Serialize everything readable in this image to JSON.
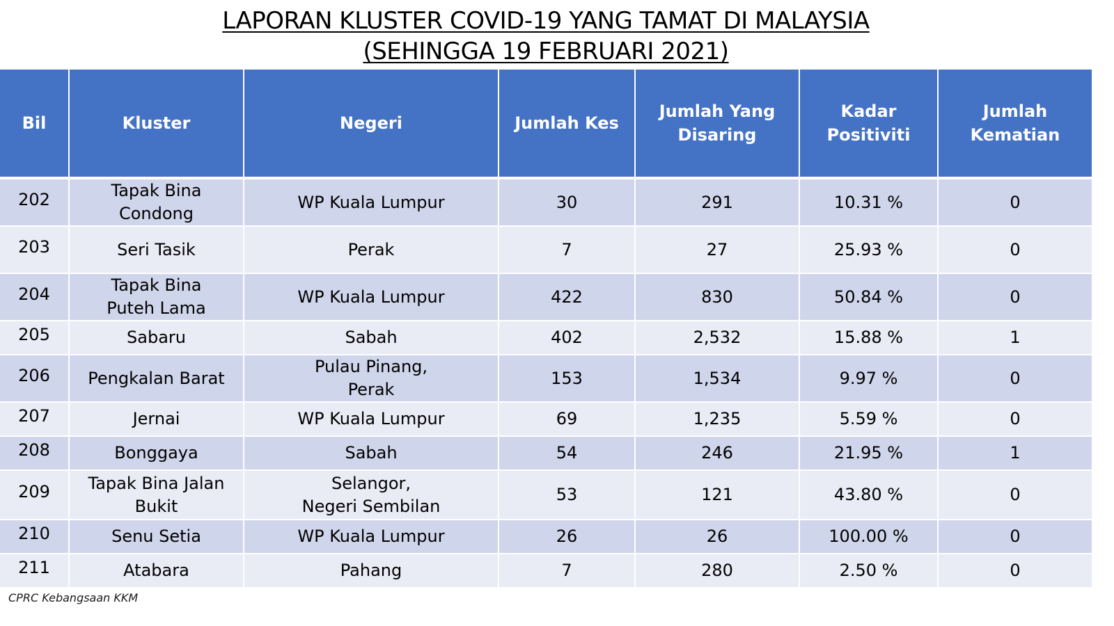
{
  "title": {
    "line1": "LAPORAN KLUSTER COVID-19 YANG TAMAT DI MALAYSIA",
    "line2": "(SEHINGGA  19 FEBRUARI 2021)"
  },
  "table": {
    "headers": {
      "bil": "Bil",
      "kluster": "Kluster",
      "negeri": "Negeri",
      "jumlah_kes": "Jumlah Kes",
      "jumlah_disaring_1": "Jumlah Yang",
      "jumlah_disaring_2": "Disaring",
      "kadar_positiviti": "Kadar Positiviti",
      "jumlah_kematian": "Jumlah Kematian"
    },
    "rows": [
      {
        "bil": "202",
        "kluster_1": "Tapak Bina Condong",
        "kluster_2": "",
        "negeri_1": "WP Kuala Lumpur",
        "negeri_2": "",
        "kes": "30",
        "disaring": "291",
        "positiviti": "10.31 %",
        "kematian": "0"
      },
      {
        "bil": "203",
        "kluster_1": "Seri Tasik",
        "kluster_2": "",
        "negeri_1": "Perak",
        "negeri_2": "",
        "kes": "7",
        "disaring": "27",
        "positiviti": "25.93 %",
        "kematian": "0"
      },
      {
        "bil": "204",
        "kluster_1": "Tapak Bina",
        "kluster_2": "Puteh Lama",
        "negeri_1": "WP Kuala Lumpur",
        "negeri_2": "",
        "kes": "422",
        "disaring": "830",
        "positiviti": "50.84 %",
        "kematian": "0"
      },
      {
        "bil": "205",
        "kluster_1": "Sabaru",
        "kluster_2": "",
        "negeri_1": "Sabah",
        "negeri_2": "",
        "kes": "402",
        "disaring": "2,532",
        "positiviti": "15.88 %",
        "kematian": "1"
      },
      {
        "bil": "206",
        "kluster_1": "Pengkalan Barat",
        "kluster_2": "",
        "negeri_1": "Pulau Pinang,",
        "negeri_2": "Perak",
        "kes": "153",
        "disaring": "1,534",
        "positiviti": "9.97 %",
        "kematian": "0"
      },
      {
        "bil": "207",
        "kluster_1": "Jernai",
        "kluster_2": "",
        "negeri_1": "WP Kuala Lumpur",
        "negeri_2": "",
        "kes": "69",
        "disaring": "1,235",
        "positiviti": "5.59 %",
        "kematian": "0"
      },
      {
        "bil": "208",
        "kluster_1": "Bonggaya",
        "kluster_2": "",
        "negeri_1": "Sabah",
        "negeri_2": "",
        "kes": "54",
        "disaring": "246",
        "positiviti": "21.95 %",
        "kematian": "1"
      },
      {
        "bil": "209",
        "kluster_1": "Tapak Bina Jalan",
        "kluster_2": "Bukit",
        "negeri_1": "Selangor,",
        "negeri_2": "Negeri Sembilan",
        "kes": "53",
        "disaring": "121",
        "positiviti": "43.80 %",
        "kematian": "0"
      },
      {
        "bil": "210",
        "kluster_1": "Senu Setia",
        "kluster_2": "",
        "negeri_1": "WP Kuala Lumpur",
        "negeri_2": "",
        "kes": "26",
        "disaring": "26",
        "positiviti": "100.00 %",
        "kematian": "0"
      },
      {
        "bil": "211",
        "kluster_1": "Atabara",
        "kluster_2": "",
        "negeri_1": "Pahang",
        "negeri_2": "",
        "kes": "7",
        "disaring": "280",
        "positiviti": "2.50 %",
        "kematian": "0"
      }
    ]
  },
  "source": "CPRC Kebangsaan KKM",
  "colors": {
    "header_bg": "#4472c4",
    "row_dark": "#cfd5ea",
    "row_light": "#e9ebf5"
  }
}
